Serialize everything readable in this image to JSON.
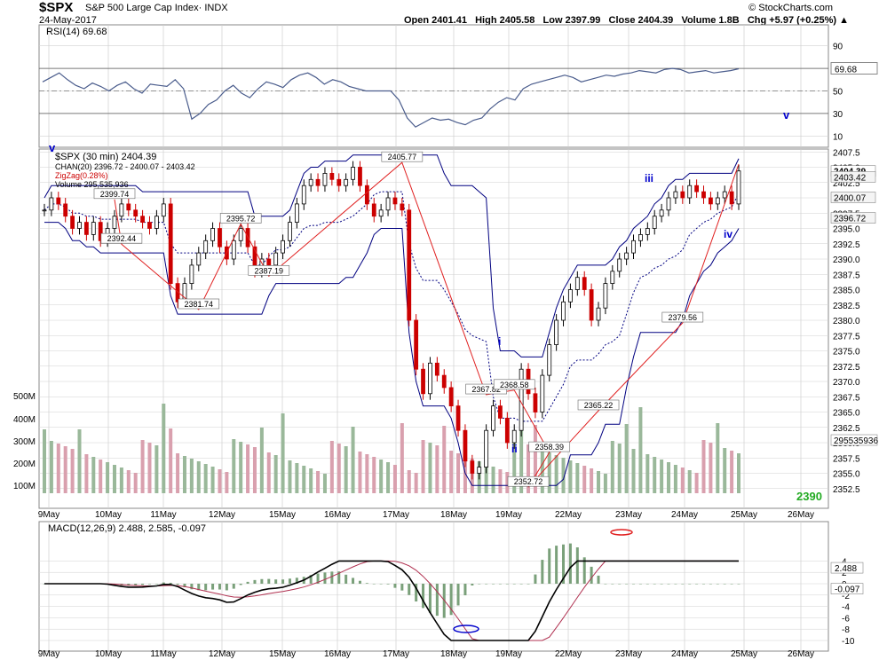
{
  "header": {
    "symbol": "$SPX",
    "name": "S&P 500 Large Cap Index· INDX",
    "date": "24-May-2017",
    "copyright": "© StockCharts.com",
    "ohlc": "Open 2401.41   High 2405.58   Low 2397.99   Close 2404.39   Volume 1.8B   Chg +5.97 (+0.25%) ▲"
  },
  "colors": {
    "grid": "#d0d0d0",
    "candle_up": "#000000",
    "candle_down": "#cc0000",
    "channel": "#000080",
    "zigzag": "#e02020",
    "vol_up": "#9ab89a",
    "vol_down": "#d9a0ae",
    "rsi_line": "#4a5c8c",
    "macd_line": "#000000",
    "signal_line": "#b03050",
    "hist": "#7aa07a",
    "wave_label": "#0000cc",
    "callout": "#22aa22"
  },
  "x_labels": [
    "9May",
    "10May",
    "11May",
    "12May",
    "15May",
    "16May",
    "17May",
    "18May",
    "19May",
    "22May",
    "23May",
    "24May",
    "25May",
    "26May"
  ],
  "rsi": {
    "legend": "RSI(14) 69.68",
    "ticks": [
      "90",
      "70",
      "50",
      "30",
      "10"
    ],
    "last_label": "69.68",
    "wave_label": "v",
    "values": [
      58,
      62,
      66,
      60,
      55,
      52,
      57,
      54,
      50,
      55,
      58,
      52,
      48,
      56,
      55,
      54,
      60,
      52,
      25,
      30,
      38,
      42,
      50,
      55,
      48,
      44,
      52,
      58,
      56,
      53,
      60,
      64,
      66,
      62,
      56,
      60,
      58,
      54,
      52,
      50,
      50,
      50,
      50,
      42,
      26,
      18,
      22,
      26,
      24,
      25,
      22,
      20,
      24,
      26,
      34,
      40,
      44,
      42,
      52,
      56,
      58,
      60,
      62,
      64,
      62,
      58,
      60,
      62,
      64,
      63,
      65,
      66,
      68,
      67,
      66,
      69,
      70,
      69,
      66,
      67,
      68,
      66,
      67,
      68,
      69.68
    ]
  },
  "price": {
    "legend": "$SPX (30 min) 2404.39",
    "chan_legend": "CHAN(20) 2396.72 - 2400.07 - 2403.42",
    "zigzag_legend": "ZigZag(0.28%)",
    "volume_legend": "Volume 295,535,936",
    "ticks": [
      "2407.5",
      "2405.0",
      "2402.5",
      "2400.0",
      "2397.5",
      "2395.0",
      "2392.5",
      "2390.0",
      "2387.5",
      "2385.0",
      "2382.5",
      "2380.0",
      "2377.5",
      "2375.0",
      "2372.5",
      "2370.0",
      "2367.5",
      "2365.0",
      "2362.5",
      "2360.0",
      "2357.5",
      "2355.0",
      "2352.5"
    ],
    "last_value_labels": [
      "2404.39",
      "2403.42",
      "2400.07",
      "2396.72"
    ],
    "volume_ticks": [
      "500M",
      "400M",
      "300M",
      "200M",
      "100M"
    ],
    "volume_last_label": "295535936",
    "pivot_labels": [
      "2399.74",
      "2392.44",
      "2381.74",
      "2395.72",
      "2387.19",
      "2405.77",
      "2367.82",
      "2368.58",
      "2358.39",
      "2352.72",
      "2365.22",
      "2379.56"
    ],
    "wave_labels": [
      "iii",
      "iv",
      "i",
      "ii"
    ],
    "callout": "2390"
  },
  "macd": {
    "legend": "MACD(12,26,9) 2.488, 2.585, -0.097",
    "ticks": [
      "4",
      "2",
      "0",
      "-2",
      "-4",
      "-6",
      "-8",
      "-10"
    ],
    "last_labels": [
      "2.488",
      "-0.097"
    ]
  },
  "chart_data": {
    "type": "candlestick",
    "title": "$SPX S&P 500 Large Cap Index· INDX",
    "ylim": [
      2350,
      2409
    ],
    "zigzag_pivots": [
      {
        "x": 10,
        "y": 2399.74
      },
      {
        "x": 11,
        "y": 2392.44
      },
      {
        "x": 22,
        "y": 2381.74
      },
      {
        "x": 28,
        "y": 2395.72
      },
      {
        "x": 32,
        "y": 2387.19
      },
      {
        "x": 51,
        "y": 2405.77
      },
      {
        "x": 63,
        "y": 2367.82
      },
      {
        "x": 67,
        "y": 2368.58
      },
      {
        "x": 72,
        "y": 2358.39
      },
      {
        "x": 69,
        "y": 2352.72
      },
      {
        "x": 79,
        "y": 2365.22
      },
      {
        "x": 91,
        "y": 2379.56
      }
    ],
    "close_series": [
      2398,
      2400,
      2399,
      2397,
      2395,
      2396,
      2394,
      2396,
      2393,
      2395,
      2397,
      2399,
      2398,
      2397,
      2396,
      2395,
      2397,
      2399,
      2386,
      2383,
      2386,
      2389,
      2391,
      2393,
      2395,
      2392,
      2390,
      2393,
      2395,
      2392,
      2388,
      2390,
      2389,
      2391,
      2393,
      2396,
      2399,
      2402,
      2403,
      2402,
      2404,
      2403,
      2402,
      2403,
      2405,
      2402,
      2399,
      2397,
      2398,
      2400,
      2399,
      2398,
      2380,
      2372,
      2368,
      2373,
      2371,
      2369,
      2366,
      2362,
      2357,
      2355,
      2356,
      2362,
      2366,
      2364,
      2360,
      2362,
      2372,
      2368,
      2365,
      2371,
      2376,
      2380,
      2383,
      2385,
      2387,
      2385,
      2380,
      2382,
      2386,
      2388,
      2390,
      2391,
      2393,
      2394,
      2395,
      2397,
      2398,
      2400,
      2401,
      2400,
      2402,
      2401,
      2400,
      2399,
      2400,
      2401,
      2399,
      2404.39
    ],
    "macd": {
      "name": "MACD(12,26,9)",
      "last": 2.488,
      "signal_last": 2.585,
      "hist_last": -0.097
    }
  }
}
